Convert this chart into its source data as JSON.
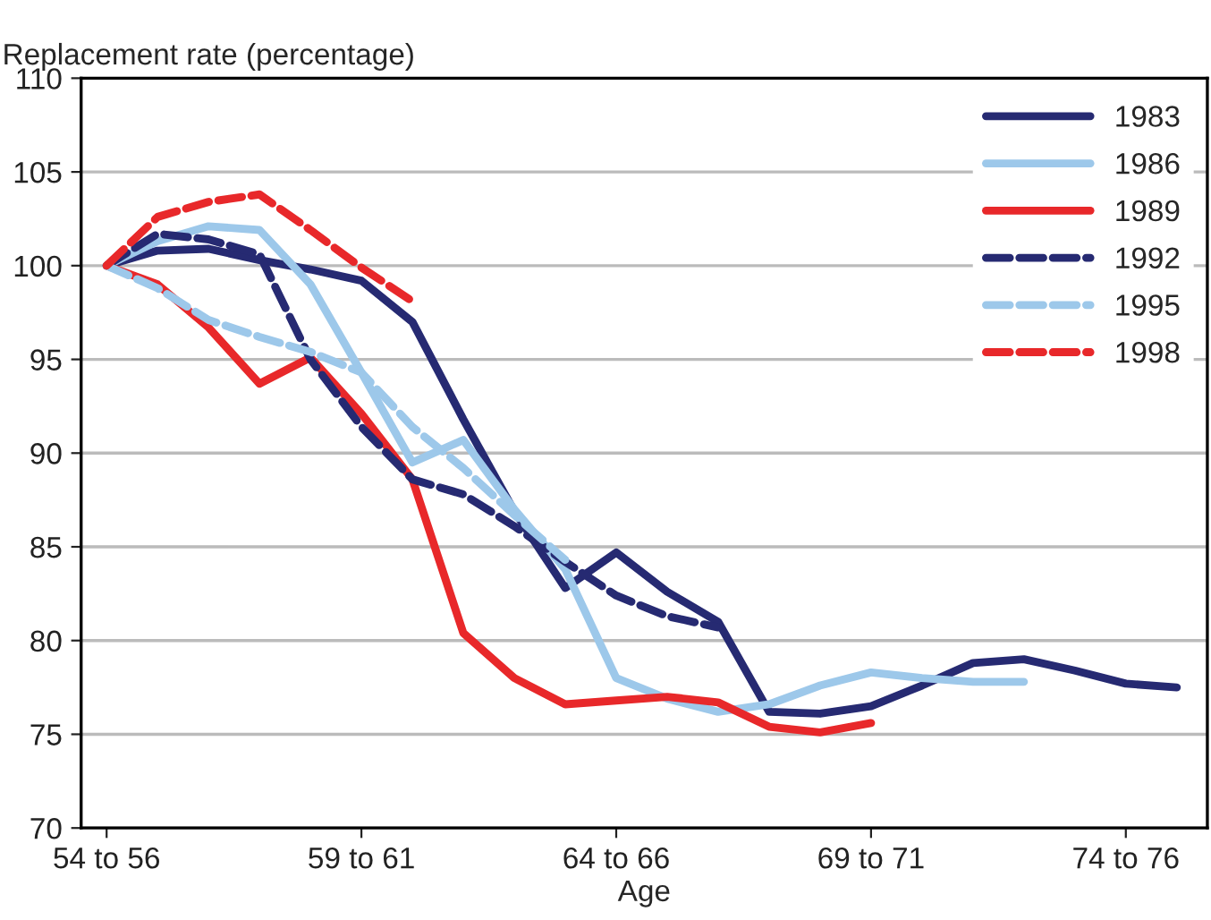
{
  "chart_data": {
    "type": "line",
    "ylabel": "Replacement rate (percentage)",
    "xlabel": "Age",
    "categories": [
      "54 to 56",
      null,
      null,
      null,
      null,
      "59 to 61",
      null,
      null,
      null,
      null,
      "64 to 66",
      null,
      null,
      null,
      null,
      "69 to 71",
      null,
      null,
      null,
      null,
      "74 to 76",
      null
    ],
    "ylim": [
      70,
      110
    ],
    "yticks": [
      70,
      75,
      80,
      85,
      90,
      95,
      100,
      105,
      110
    ],
    "grid": "y",
    "legend": "top right",
    "marker": "none",
    "series": [
      {
        "name": "1983",
        "color": "#262a72",
        "line_style": "solid",
        "values": [
          100,
          100.8,
          100.9,
          100.3,
          99.8,
          99.2,
          97.0,
          91.8,
          86.9,
          82.8,
          84.7,
          82.6,
          81.0,
          76.2,
          76.1,
          76.5,
          77.6,
          78.8,
          79.0,
          78.4,
          77.7,
          77.5
        ]
      },
      {
        "name": "1986",
        "color": "#9dc8ea",
        "line_style": "solid",
        "values": [
          100,
          101.3,
          102.1,
          101.9,
          99.0,
          94.3,
          89.5,
          90.7,
          87.0,
          83.8,
          78.0,
          76.9,
          76.2,
          76.6,
          77.6,
          78.3,
          78.0,
          77.8,
          77.8,
          null,
          null,
          null
        ]
      },
      {
        "name": "1989",
        "color": "#e8282a",
        "line_style": "solid",
        "values": [
          100,
          99.0,
          96.7,
          93.7,
          95.1,
          92.1,
          88.6,
          80.4,
          78.0,
          76.6,
          76.8,
          77.0,
          76.7,
          75.4,
          75.1,
          75.6,
          null,
          null,
          null,
          null,
          null,
          null
        ]
      },
      {
        "name": "1992",
        "color": "#262a72",
        "line_style": "dashed",
        "values": [
          100,
          101.7,
          101.4,
          100.6,
          95.0,
          91.4,
          88.6,
          87.8,
          86.1,
          84.2,
          82.4,
          81.3,
          80.7,
          null,
          null,
          null,
          null,
          null,
          null,
          null,
          null,
          null
        ]
      },
      {
        "name": "1995",
        "color": "#9dc8ea",
        "line_style": "dashed",
        "values": [
          100,
          98.8,
          97.1,
          96.2,
          95.4,
          94.3,
          91.4,
          89.2,
          86.7,
          84.3,
          null,
          null,
          null,
          null,
          null,
          null,
          null,
          null,
          null,
          null,
          null,
          null
        ]
      },
      {
        "name": "1998",
        "color": "#e8282a",
        "line_style": "dashed",
        "values": [
          100,
          102.6,
          103.4,
          103.8,
          101.9,
          99.9,
          98.1,
          null,
          null,
          null,
          null,
          null,
          null,
          null,
          null,
          null,
          null,
          null,
          null,
          null,
          null,
          null
        ]
      }
    ]
  }
}
